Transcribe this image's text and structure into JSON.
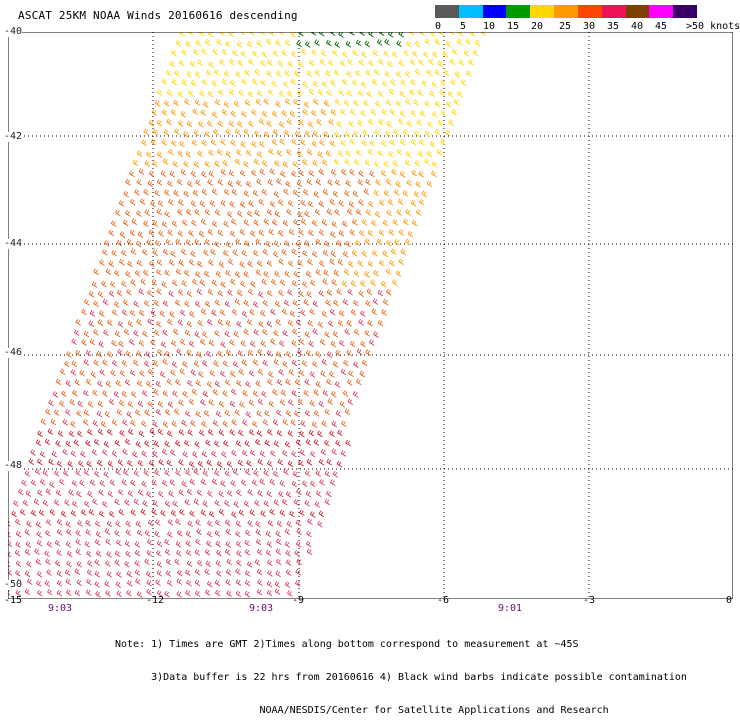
{
  "title": "ASCAT 25KM NOAA Winds 20160616 descending",
  "colorbar": {
    "unit": "knots",
    "colors": [
      "#5a5a5a",
      "#00bfff",
      "#0000ff",
      "#009900",
      "#ffd700",
      "#ff9900",
      "#ff4500",
      "#ee1155",
      "#7b3f00",
      "#ff00ff",
      "#3b0068"
    ],
    "labels": [
      "0",
      "5",
      "10",
      "15",
      "20",
      "25",
      "30",
      "35",
      "40",
      "45",
      ">50 knots"
    ]
  },
  "map": {
    "lat_labels": [
      "-40",
      "-42",
      "-44",
      "-46",
      "-48",
      "-50"
    ],
    "lon_labels": [
      "-15",
      "-12",
      "-9",
      "-6",
      "-3",
      "0"
    ],
    "time_labels": [
      "9:03",
      "9:03",
      "9:01"
    ],
    "swath_colors": [
      "#ffd700",
      "#ff9900",
      "#e8661a",
      "#d94060",
      "#cc2233"
    ],
    "contamination_color": "#006600"
  },
  "notes": [
    "Note: 1) Times are GMT 2)Times along bottom correspond to measurement at ~45S",
    "      3)Data buffer is 22 hrs from 20160616 4) Black wind barbs indicate possible contamination",
    "                        NOAA/NESDIS/Center for Satellite Applications and Research"
  ]
}
